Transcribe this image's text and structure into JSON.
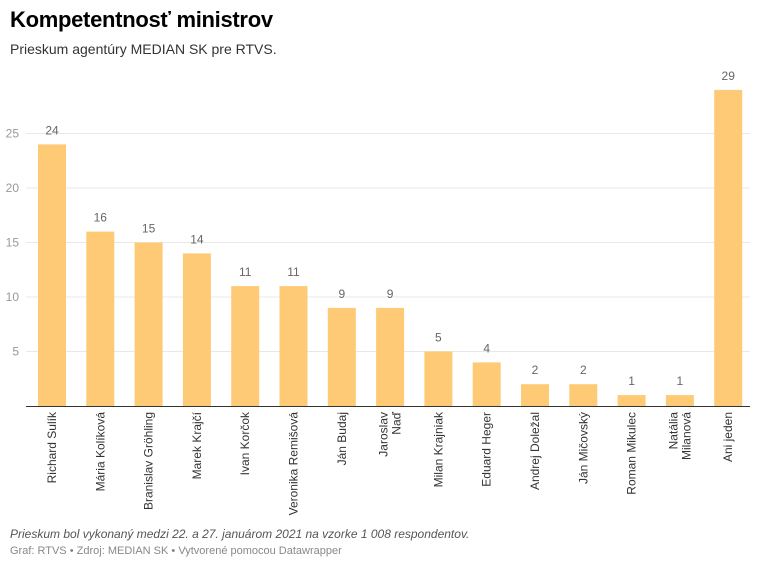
{
  "header": {
    "title": "Kompetentnosť ministrov",
    "subtitle": "Prieskum agentúry MEDIAN SK pre RTVS."
  },
  "footer": {
    "notes": "Prieskum bol vykonaný medzi 22. a 27. januárom 2021 na vzorke 1 008 respondentov.",
    "chart_credit": "Graf: RTVS",
    "separator": "•",
    "source": "Zdroj: MEDIAN SK",
    "made_with": "Vytvorené pomocou Datawrapper"
  },
  "colors": {
    "bar": "#ffca76",
    "grid": "#e8e8e8",
    "axis": "#333333",
    "tick_text": "#999999",
    "value_text": "#666666"
  },
  "chart_data": {
    "type": "bar",
    "title": "Kompetentnosť ministrov",
    "subtitle": "Prieskum agentúry MEDIAN SK pre RTVS.",
    "xlabel": "",
    "ylabel": "",
    "categories": [
      [
        "Richard Sulík"
      ],
      [
        "Mária Kolíková"
      ],
      [
        "Branislav Gröhling"
      ],
      [
        "Marek Krajčí"
      ],
      [
        "Ivan Korčok"
      ],
      [
        "Veronika Remišová"
      ],
      [
        "Ján Budaj"
      ],
      [
        "Jaroslav",
        "Naď"
      ],
      [
        "Milan Krajniak"
      ],
      [
        "Eduard Heger"
      ],
      [
        "Andrej Doležal"
      ],
      [
        "Ján Mičovský"
      ],
      [
        "Roman Mikulec"
      ],
      [
        "Natália",
        "Milanová"
      ],
      [
        "Ani jeden"
      ]
    ],
    "values": [
      24,
      16,
      15,
      14,
      11,
      11,
      9,
      9,
      5,
      4,
      2,
      2,
      1,
      1,
      29
    ],
    "yticks": [
      5,
      10,
      15,
      20,
      25
    ],
    "ylim": [
      0,
      29
    ],
    "grid": true,
    "data_labels": true,
    "legend": "none"
  }
}
